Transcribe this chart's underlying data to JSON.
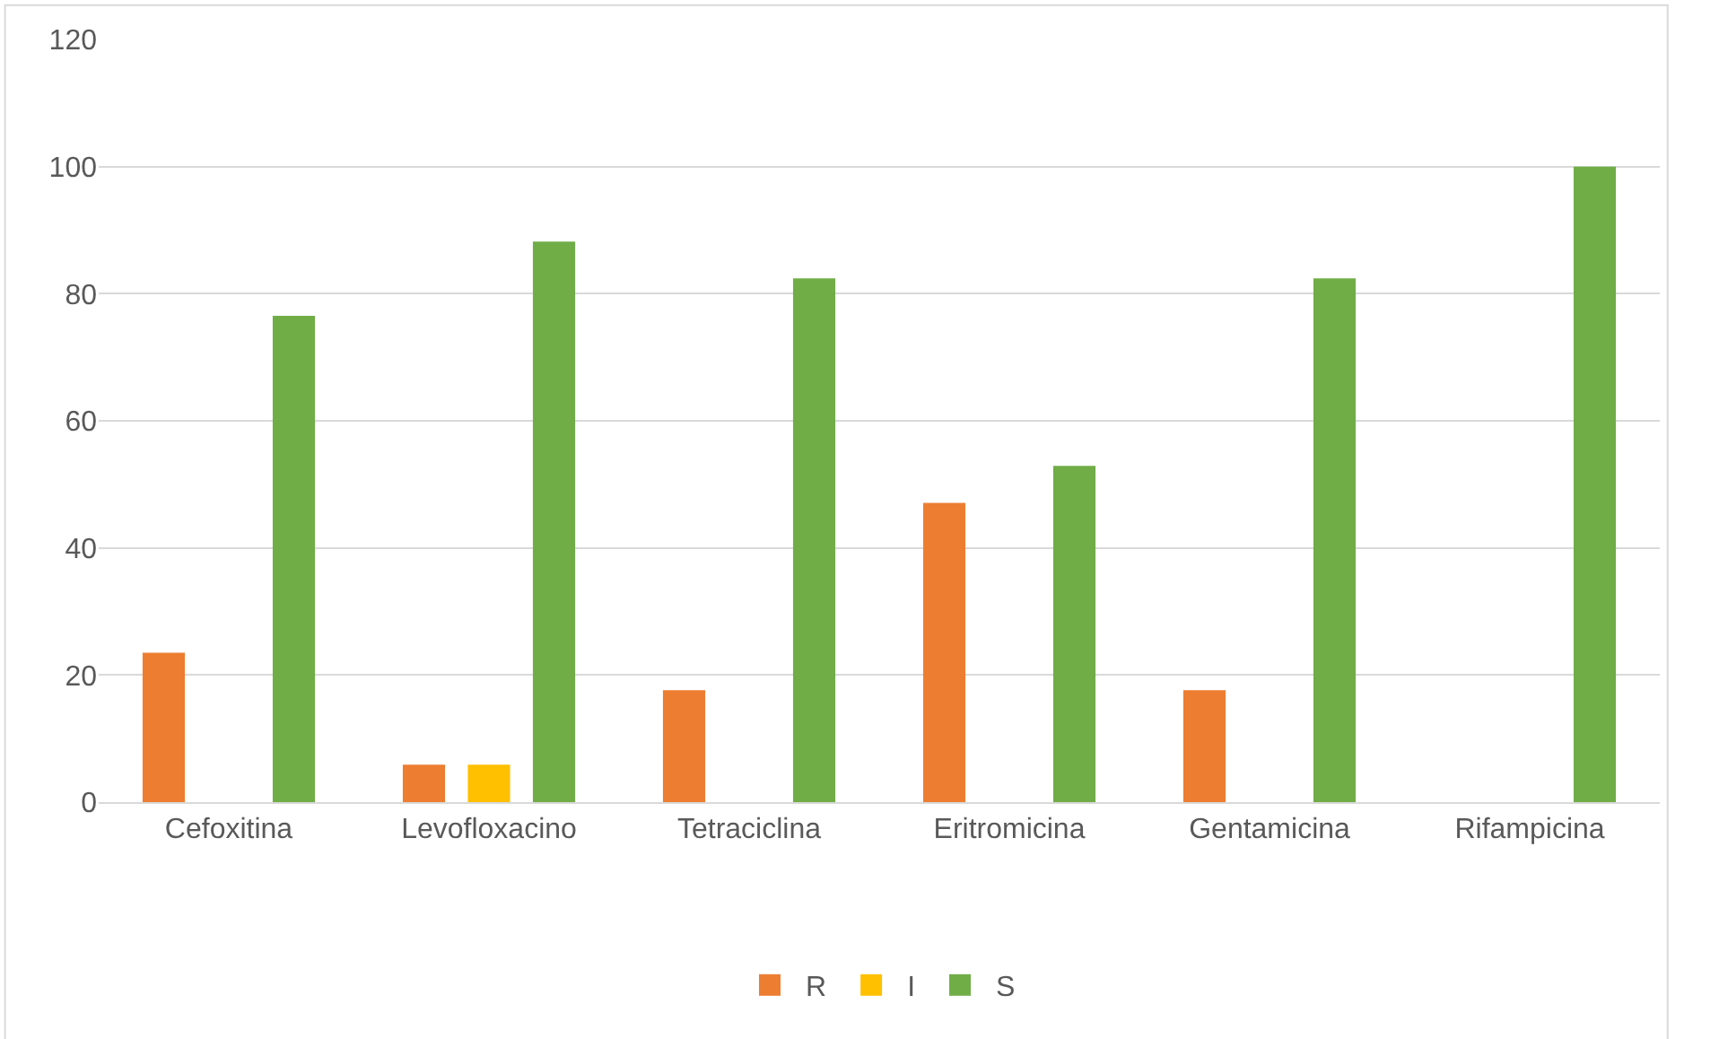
{
  "chart_data": {
    "type": "bar",
    "categories": [
      "Cefoxitina",
      "Levofloxacino",
      "Tetraciclina",
      "Eritromicina",
      "Gentamicina",
      "Rifampicina"
    ],
    "series": [
      {
        "name": "R",
        "color": "#ed7d31",
        "values": [
          23.5,
          5.9,
          17.6,
          47.1,
          17.6,
          0
        ]
      },
      {
        "name": "I",
        "color": "#ffc000",
        "values": [
          0,
          5.9,
          0,
          0,
          0,
          0
        ]
      },
      {
        "name": "S",
        "color": "#70ad47",
        "values": [
          76.5,
          88.2,
          82.4,
          52.9,
          82.4,
          100
        ]
      }
    ],
    "ylim": [
      0,
      120
    ],
    "yticks": [
      0,
      20,
      40,
      60,
      80,
      100,
      120
    ],
    "grid": "y",
    "legend": "bottom"
  }
}
